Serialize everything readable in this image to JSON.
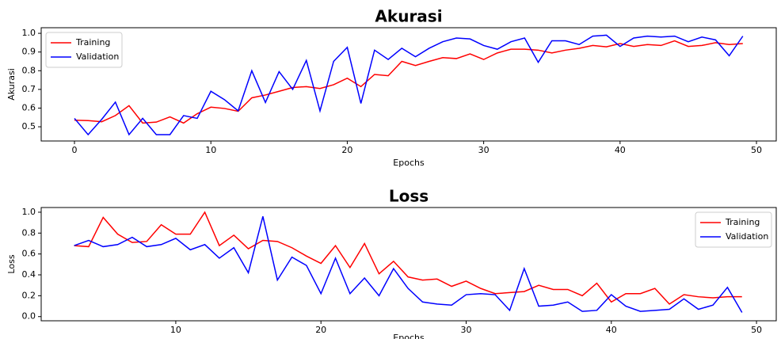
{
  "chart_data": [
    {
      "type": "line",
      "title": "Akurasi",
      "x_label": "Epochs",
      "y_label": "Akurasi",
      "x": [
        0,
        1,
        2,
        3,
        4,
        5,
        6,
        7,
        8,
        9,
        10,
        11,
        12,
        13,
        14,
        15,
        16,
        17,
        18,
        19,
        20,
        21,
        22,
        23,
        24,
        25,
        26,
        27,
        28,
        29,
        30,
        31,
        32,
        33,
        34,
        35,
        36,
        37,
        38,
        39,
        40,
        41,
        42,
        43,
        44,
        45,
        46,
        47,
        48,
        49
      ],
      "series": [
        {
          "name": "Training",
          "color": "#ff0000",
          "values": [
            0.535,
            0.533,
            0.527,
            0.56,
            0.613,
            0.52,
            0.525,
            0.553,
            0.52,
            0.57,
            0.605,
            0.598,
            0.583,
            0.655,
            0.67,
            0.69,
            0.71,
            0.715,
            0.705,
            0.725,
            0.76,
            0.715,
            0.78,
            0.773,
            0.85,
            0.828,
            0.85,
            0.87,
            0.865,
            0.89,
            0.86,
            0.895,
            0.915,
            0.915,
            0.91,
            0.895,
            0.91,
            0.92,
            0.935,
            0.928,
            0.945,
            0.93,
            0.94,
            0.935,
            0.96,
            0.93,
            0.935,
            0.95,
            0.94,
            0.945
          ]
        },
        {
          "name": "Validation",
          "color": "#0000ff",
          "values": [
            0.545,
            0.458,
            0.54,
            0.632,
            0.458,
            0.545,
            0.458,
            0.458,
            0.56,
            0.545,
            0.69,
            0.645,
            0.585,
            0.8,
            0.63,
            0.795,
            0.7,
            0.855,
            0.585,
            0.85,
            0.925,
            0.625,
            0.91,
            0.86,
            0.92,
            0.875,
            0.92,
            0.955,
            0.975,
            0.97,
            0.935,
            0.915,
            0.955,
            0.975,
            0.845,
            0.96,
            0.96,
            0.94,
            0.985,
            0.99,
            0.93,
            0.975,
            0.985,
            0.98,
            0.985,
            0.955,
            0.98,
            0.965,
            0.88,
            0.985
          ]
        }
      ],
      "xlim": [
        -2.44,
        51.45
      ],
      "xticks": [
        0,
        10,
        20,
        30,
        40,
        50
      ],
      "ylim": [
        0.424,
        1.03
      ],
      "yticks": [
        0.5,
        0.6,
        0.7,
        0.8,
        0.9,
        {
          "value": 1,
          "label": "1.0"
        }
      ],
      "grid": false,
      "legend": "upper left"
    },
    {
      "type": "line",
      "title": "Loss",
      "x_label": "Epochs",
      "y_label": "Loss",
      "x": [
        3,
        4,
        5,
        6,
        7,
        8,
        9,
        10,
        11,
        12,
        13,
        14,
        15,
        16,
        17,
        18,
        19,
        20,
        21,
        22,
        23,
        24,
        25,
        26,
        27,
        28,
        29,
        30,
        31,
        32,
        33,
        34,
        35,
        36,
        37,
        38,
        39,
        40,
        41,
        42,
        43,
        44,
        45,
        46,
        47,
        48,
        49
      ],
      "series": [
        {
          "name": "Training",
          "color": "#ff0000",
          "values": [
            0.68,
            0.67,
            0.95,
            0.79,
            0.71,
            0.72,
            0.88,
            0.79,
            0.79,
            1.0,
            0.68,
            0.78,
            0.65,
            0.73,
            0.72,
            0.66,
            0.58,
            0.51,
            0.68,
            0.47,
            0.7,
            0.41,
            0.53,
            0.38,
            0.35,
            0.36,
            0.29,
            0.34,
            0.27,
            0.22,
            0.23,
            0.24,
            0.3,
            0.26,
            0.26,
            0.2,
            0.32,
            0.14,
            0.22,
            0.22,
            0.27,
            0.12,
            0.21,
            0.19,
            0.18,
            0.19,
            0.19
          ]
        },
        {
          "name": "Validation",
          "color": "#0000ff",
          "values": [
            0.68,
            0.73,
            0.67,
            0.69,
            0.76,
            0.67,
            0.69,
            0.75,
            0.64,
            0.69,
            0.56,
            0.66,
            0.42,
            0.96,
            0.35,
            0.57,
            0.49,
            0.22,
            0.56,
            0.22,
            0.37,
            0.2,
            0.46,
            0.27,
            0.14,
            0.12,
            0.11,
            0.21,
            0.22,
            0.21,
            0.06,
            0.46,
            0.1,
            0.11,
            0.14,
            0.05,
            0.06,
            0.21,
            0.1,
            0.05,
            0.06,
            0.07,
            0.17,
            0.07,
            0.11,
            0.28,
            0.04
          ]
        }
      ],
      "xlim": [
        0.73,
        51.36
      ],
      "xticks": [
        10,
        20,
        30,
        40,
        50
      ],
      "ylim": [
        -0.04,
        1.045
      ],
      "yticks": [
        {
          "value": 0,
          "label": "0.0"
        },
        0.2,
        0.4,
        0.6,
        0.8,
        {
          "value": 1,
          "label": "1.0"
        }
      ],
      "grid": false,
      "legend": "upper right"
    }
  ]
}
